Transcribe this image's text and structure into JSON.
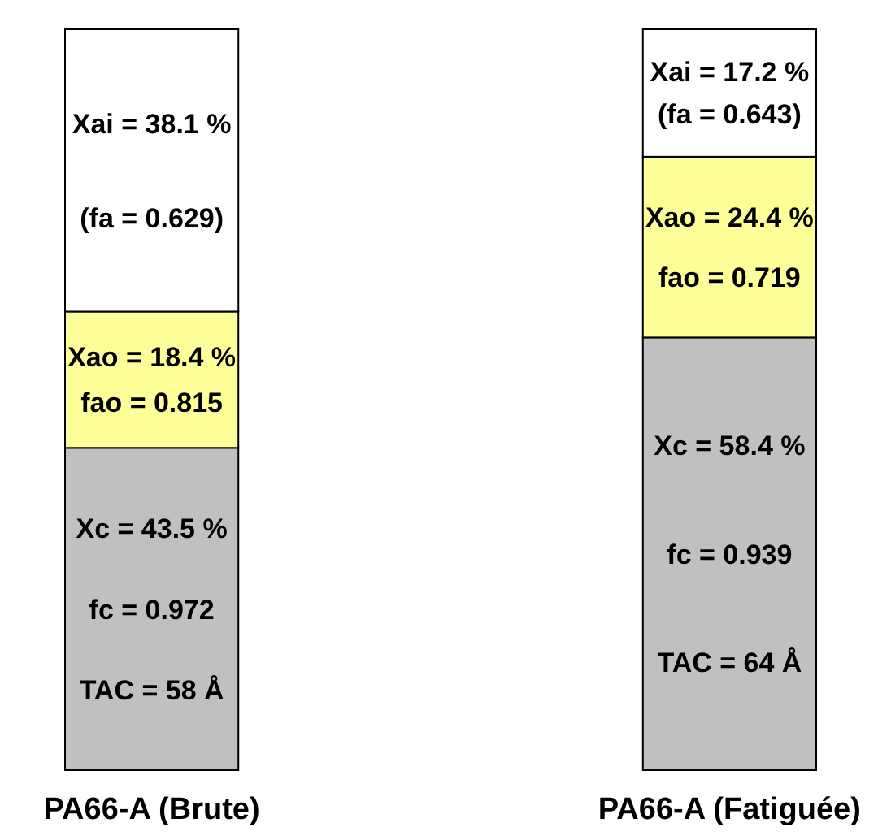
{
  "chart_data": {
    "type": "bar",
    "stacked": true,
    "categories": [
      "PA66-A (Brute)",
      "PA66-A (Fatiguée)"
    ],
    "series": [
      {
        "color": "#c0c0c0",
        "values": [
          43.5,
          58.4
        ],
        "value_labels": [
          "Xc = 43.5 %\nfc = 0.972\nTAC = 58 Å",
          "Xc = 58.4 %\nfc = 0.939\nTAC = 64 Å"
        ]
      },
      {
        "color": "#ffff99",
        "values": [
          18.4,
          24.4
        ],
        "value_labels": [
          "Xao = 18.4 %\nfao = 0.815",
          "Xao = 24.4 %\nfao = 0.719"
        ]
      },
      {
        "color": "#ffffff",
        "values": [
          38.1,
          17.2
        ],
        "value_labels": [
          "Xai = 38.1 %\n(fa = 0.629)",
          "Xai = 17.2 %\n(fa = 0.643)"
        ]
      }
    ]
  }
}
